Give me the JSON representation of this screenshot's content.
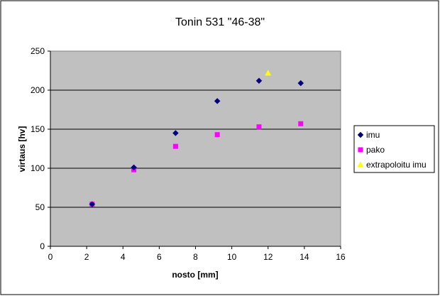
{
  "chart_data": {
    "type": "scatter",
    "title": "Tonin 531 \"46-38\"",
    "xlabel": "nosto [mm]",
    "ylabel": "virtaus [hv]",
    "xlim": [
      0,
      16
    ],
    "ylim": [
      0,
      250
    ],
    "x_ticks": [
      "0",
      "2",
      "4",
      "6",
      "8",
      "10",
      "12",
      "14",
      "16"
    ],
    "y_ticks": [
      "0",
      "50",
      "100",
      "150",
      "200",
      "250"
    ],
    "grid": "horizontal",
    "legend_position": "right",
    "plot_background": "#c0c0c0",
    "series": [
      {
        "name": "imu",
        "marker": "diamond",
        "color": "#000080",
        "x": [
          2.3,
          4.6,
          6.9,
          9.2,
          11.5,
          13.8
        ],
        "y": [
          54,
          101,
          145,
          186,
          212,
          209
        ]
      },
      {
        "name": "pako",
        "marker": "square",
        "color": "#ff00ff",
        "x": [
          2.3,
          4.6,
          6.9,
          9.2,
          11.5,
          13.8
        ],
        "y": [
          54,
          98,
          128,
          143,
          153,
          157
        ]
      },
      {
        "name": "extrapoloitu imu",
        "marker": "triangle",
        "color": "#ffff00",
        "x": [
          12.0
        ],
        "y": [
          222
        ]
      }
    ]
  }
}
